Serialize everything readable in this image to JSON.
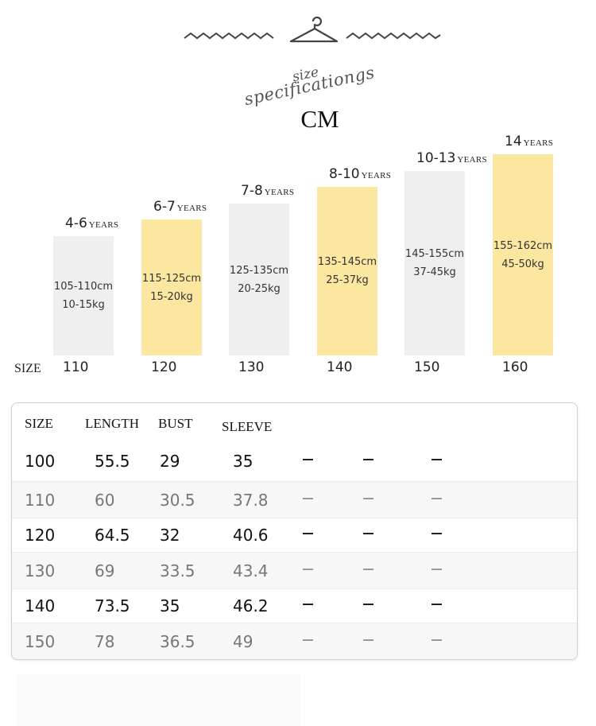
{
  "header": {
    "script_line1": "size",
    "script_line2": "specificationgs",
    "unit": "CM"
  },
  "chart_data": {
    "type": "bar",
    "xlabel": "SIZE",
    "categories": [
      "110",
      "120",
      "130",
      "140",
      "150",
      "160"
    ],
    "age_nums": [
      "4-6",
      "6-7",
      "7-8",
      "8-10",
      "10-13",
      "14"
    ],
    "age_unit": "YEARS",
    "heights": [
      "105-110cm",
      "115-125cm",
      "125-135cm",
      "135-145cm",
      "145-155cm",
      "155-162cm"
    ],
    "weights": [
      "10-15kg",
      "15-20kg",
      "20-25kg",
      "25-37kg",
      "37-45kg",
      "45-50kg"
    ],
    "levels": [
      1,
      2,
      3,
      4,
      5,
      6
    ],
    "colors": {
      "grey": "#efefef",
      "yellow": "#fbe7a0"
    }
  },
  "table": {
    "headers": [
      "SIZE",
      "LENGTH",
      "BUST",
      "SLEEVE"
    ],
    "rows": [
      {
        "size": "100",
        "length": "55.5",
        "bust": "29",
        "sleeve": "35"
      },
      {
        "size": "110",
        "length": "60",
        "bust": "30.5",
        "sleeve": "37.8"
      },
      {
        "size": "120",
        "length": "64.5",
        "bust": "32",
        "sleeve": "40.6"
      },
      {
        "size": "130",
        "length": "69",
        "bust": "33.5",
        "sleeve": "43.4"
      },
      {
        "size": "140",
        "length": "73.5",
        "bust": "35",
        "sleeve": "46.2"
      },
      {
        "size": "150",
        "length": "78",
        "bust": "36.5",
        "sleeve": "49"
      }
    ]
  }
}
